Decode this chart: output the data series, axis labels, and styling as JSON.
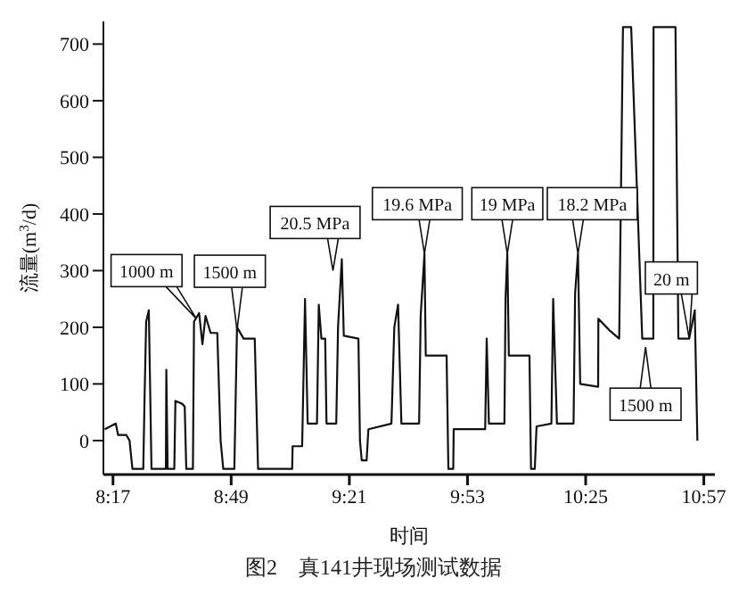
{
  "chart_data": {
    "type": "line",
    "xlabel": "时间",
    "ylabel": "流量(m$^{3}$/d)",
    "xlim": [
      8.24,
      11.0
    ],
    "ylim": [
      -60,
      740
    ],
    "xticks": [
      {
        "value": 8.2833,
        "label": "8:17"
      },
      {
        "value": 8.8167,
        "label": "8:49"
      },
      {
        "value": 9.35,
        "label": "9:21"
      },
      {
        "value": 9.8833,
        "label": "9:53"
      },
      {
        "value": 10.4167,
        "label": "10:25"
      },
      {
        "value": 10.95,
        "label": "10:57"
      }
    ],
    "yticks": [
      0,
      100,
      200,
      300,
      400,
      500,
      600,
      700
    ],
    "grid": false,
    "legend": false,
    "marker": "none",
    "line_style": "solid",
    "x": [
      8.246,
      8.296,
      8.306,
      8.343,
      8.358,
      8.371,
      8.42,
      8.425,
      8.433,
      8.445,
      8.457,
      8.522,
      8.524,
      8.53,
      8.56,
      8.565,
      8.595,
      8.607,
      8.614,
      8.644,
      8.649,
      8.672,
      8.687,
      8.701,
      8.724,
      8.754,
      8.769,
      8.781,
      8.831,
      8.843,
      8.873,
      8.923,
      8.938,
      9.092,
      9.094,
      9.137,
      9.15,
      9.162,
      9.204,
      9.212,
      9.224,
      9.241,
      9.247,
      9.291,
      9.299,
      9.316,
      9.325,
      9.391,
      9.398,
      9.406,
      9.428,
      9.436,
      9.54,
      9.553,
      9.57,
      9.585,
      9.665,
      9.672,
      9.689,
      9.695,
      9.789,
      9.797,
      9.819,
      9.821,
      9.963,
      9.97,
      9.98,
      10.05,
      10.055,
      10.063,
      10.07,
      10.163,
      10.17,
      10.187,
      10.195,
      10.262,
      10.27,
      10.287,
      10.362,
      10.369,
      10.382,
      10.392,
      10.473,
      10.474,
      10.523,
      10.568,
      10.585,
      10.622,
      10.672,
      10.722,
      10.723,
      10.822,
      10.835,
      10.884,
      10.909,
      10.921
    ],
    "series": [
      {
        "color": "#111111",
        "values": [
          20,
          30,
          10,
          10,
          0,
          -50,
          -50,
          60,
          210,
          230,
          -50,
          -50,
          125,
          -50,
          -50,
          70,
          65,
          60,
          -50,
          -50,
          210,
          225,
          170,
          220,
          190,
          190,
          0,
          -50,
          -50,
          200,
          180,
          180,
          -50,
          -50,
          -10,
          -10,
          250,
          30,
          30,
          240,
          180,
          180,
          30,
          30,
          200,
          320,
          185,
          180,
          0,
          -35,
          -35,
          20,
          30,
          200,
          240,
          30,
          30,
          220,
          330,
          150,
          150,
          -50,
          -50,
          20,
          20,
          180,
          30,
          30,
          250,
          330,
          150,
          150,
          -50,
          -50,
          25,
          30,
          250,
          30,
          30,
          260,
          330,
          100,
          95,
          215,
          195,
          180,
          730,
          730,
          180,
          180,
          730,
          730,
          180,
          180,
          230,
          0
        ]
      }
    ],
    "annotations": [
      {
        "text": "1000 m",
        "x": 8.66,
        "y": 215
      },
      {
        "text": "1500 m",
        "x": 8.843,
        "y": 195
      },
      {
        "text": "20.5 MPa",
        "x": 9.276,
        "y": 300
      },
      {
        "text": "19.6 MPa",
        "x": 9.689,
        "y": 330
      },
      {
        "text": "19 MPa",
        "x": 10.063,
        "y": 330
      },
      {
        "text": "18.2 MPa",
        "x": 10.382,
        "y": 330
      },
      {
        "text": "1500 m",
        "x": 10.687,
        "y": 165
      },
      {
        "text": "20 m",
        "x": 10.884,
        "y": 180
      },
      "图2　真141井现场测试数据"
    ]
  }
}
